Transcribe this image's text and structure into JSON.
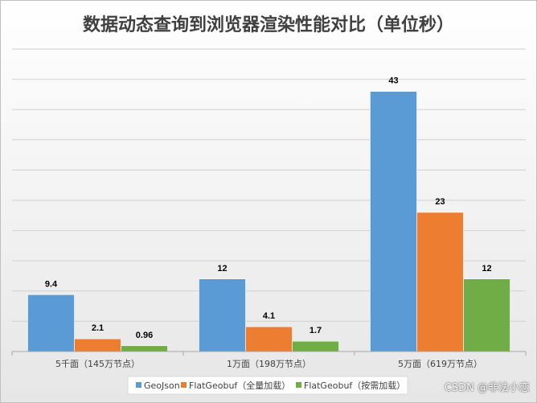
{
  "chart_data": {
    "type": "bar",
    "title": "数据动态查询到浏览器渲染性能对比（单位秒）",
    "categories": [
      "5千面（145万节点）",
      "1万面（198万节点）",
      "5万面（619万节点）"
    ],
    "series": [
      {
        "name": "GeoJson",
        "values": [
          9.4,
          12,
          43
        ],
        "labels": [
          "9.4",
          "12",
          "43"
        ],
        "color": "#5b9bd5"
      },
      {
        "name": "FlatGeobuf（全量加载）",
        "values": [
          2.1,
          4.1,
          23
        ],
        "labels": [
          "2.1",
          "4.1",
          "23"
        ],
        "color": "#ed7d31"
      },
      {
        "name": "FlatGeobuf（按需加载）",
        "values": [
          0.96,
          1.7,
          12
        ],
        "labels": [
          "0.96",
          "1.7",
          "12"
        ],
        "color": "#70ad47"
      }
    ],
    "ylim": [
      0,
      50
    ],
    "grid": true,
    "legend_position": "bottom"
  },
  "watermark": "CSDN @非法小恋"
}
